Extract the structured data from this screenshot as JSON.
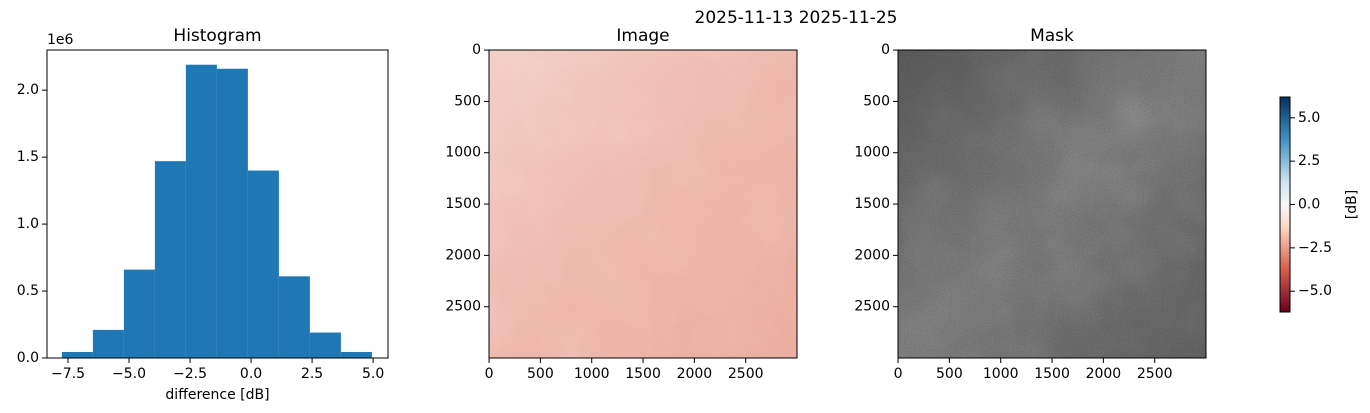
{
  "title": "2025-11-13 2025-11-25",
  "chart_data": [
    {
      "type": "histogram",
      "title": "Histogram",
      "xlabel": "difference [dB]",
      "offset_text": "1e6",
      "color": "#1f77b4",
      "bins": [
        -7.75,
        -6.48,
        -5.21,
        -3.94,
        -2.67,
        -1.4,
        -0.13,
        1.14,
        2.41,
        3.68,
        4.95
      ],
      "values": [
        45000,
        210000,
        660000,
        1470000,
        2190000,
        2160000,
        1400000,
        610000,
        190000,
        45000
      ],
      "xlim": [
        -8.36,
        5.61
      ],
      "xticks": [
        {
          "value": -7.5,
          "label": "−7.5"
        },
        {
          "value": -5,
          "label": "−5.0"
        },
        {
          "value": -2.5,
          "label": "−2.5"
        },
        {
          "value": 0,
          "label": "0.0"
        },
        {
          "value": 2.5,
          "label": "2.5"
        },
        {
          "value": 5,
          "label": "5.0"
        }
      ],
      "ylim": [
        0,
        2300000
      ],
      "yticks": [
        {
          "value": 0,
          "label": "0.0"
        },
        {
          "value": 500000,
          "label": "0.5"
        },
        {
          "value": 1000000,
          "label": "1.0"
        },
        {
          "value": 1500000,
          "label": "1.5"
        },
        {
          "value": 2000000,
          "label": "2.0"
        }
      ]
    },
    {
      "type": "image",
      "title": "Image",
      "colormap": "RdBu",
      "xlim": [
        -0.5,
        2999.5
      ],
      "ylim": [
        2999.5,
        -0.5
      ],
      "xticks": [
        0,
        500,
        1000,
        1500,
        2000,
        2500
      ],
      "yticks": [
        0,
        500,
        1000,
        1500,
        2000,
        2500
      ],
      "colorbar": {
        "label": "[dB]",
        "lim": [
          -6.2,
          6.2
        ],
        "ticks": [
          {
            "value": 5,
            "label": "5.0"
          },
          {
            "value": 2.5,
            "label": "2.5"
          },
          {
            "value": 0,
            "label": "0.0"
          },
          {
            "value": -2.5,
            "label": "−2.5"
          },
          {
            "value": -5,
            "label": "−5.0"
          }
        ]
      }
    },
    {
      "type": "image",
      "title": "Mask",
      "colormap": "gray",
      "xlim": [
        -0.5,
        2999.5
      ],
      "ylim": [
        2999.5,
        -0.5
      ],
      "xticks": [
        0,
        500,
        1000,
        1500,
        2000,
        2500
      ],
      "yticks": [
        0,
        500,
        1000,
        1500,
        2000,
        2500
      ]
    }
  ]
}
